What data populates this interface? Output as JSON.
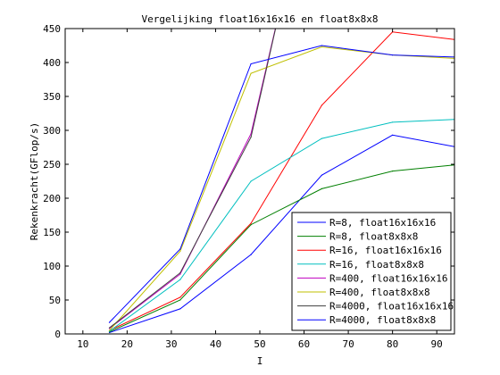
{
  "chart_data": {
    "type": "line",
    "title": "Vergelijking float16x16x16 en float8x8x8",
    "xlabel": "I",
    "ylabel": "Rekenkracht(GFlop/s)",
    "xlim": [
      6,
      94
    ],
    "ylim": [
      0,
      450
    ],
    "xticks": [
      10,
      20,
      30,
      40,
      50,
      60,
      70,
      80,
      90
    ],
    "yticks": [
      0,
      50,
      100,
      150,
      200,
      250,
      300,
      350,
      400,
      450
    ],
    "grid": false,
    "legend_position": "bottom-right",
    "series": [
      {
        "name": "R=8, float16x16x16",
        "color": "#0000ff",
        "x": [
          16,
          32,
          48,
          64,
          80,
          94
        ],
        "y": [
          2,
          37,
          117,
          234,
          293,
          276
        ]
      },
      {
        "name": "R=8, float8x8x8",
        "color": "#007f00",
        "x": [
          16,
          32,
          48,
          64,
          80,
          94
        ],
        "y": [
          3,
          50,
          161,
          214,
          240,
          249
        ]
      },
      {
        "name": "R=16, float16x16x16",
        "color": "#ff0000",
        "x": [
          16,
          32,
          48,
          64,
          80,
          94
        ],
        "y": [
          5,
          54,
          163,
          337,
          445,
          434
        ]
      },
      {
        "name": "R=16, float8x8x8",
        "color": "#00bfbf",
        "x": [
          16,
          32,
          48,
          64,
          80,
          94
        ],
        "y": [
          4,
          80,
          225,
          288,
          312,
          316
        ]
      },
      {
        "name": "R=400, float16x16x16",
        "color": "#bf00bf",
        "x": [
          16,
          32,
          48,
          56
        ],
        "y": [
          8,
          88,
          295,
          520
        ]
      },
      {
        "name": "R=400, float8x8x8",
        "color": "#bfbf00",
        "x": [
          16,
          32,
          48,
          64,
          80,
          94
        ],
        "y": [
          5,
          122,
          384,
          423,
          411,
          406
        ]
      },
      {
        "name": "R=4000, float16x16x16",
        "color": "#3f3f3f",
        "x": [
          16,
          32,
          48,
          56
        ],
        "y": [
          9,
          90,
          290,
          520
        ]
      },
      {
        "name": "R=4000, float8x8x8",
        "color": "#0000ff",
        "x": [
          16,
          32,
          48,
          64,
          80,
          94
        ],
        "y": [
          17,
          125,
          398,
          425,
          411,
          408
        ]
      }
    ]
  }
}
